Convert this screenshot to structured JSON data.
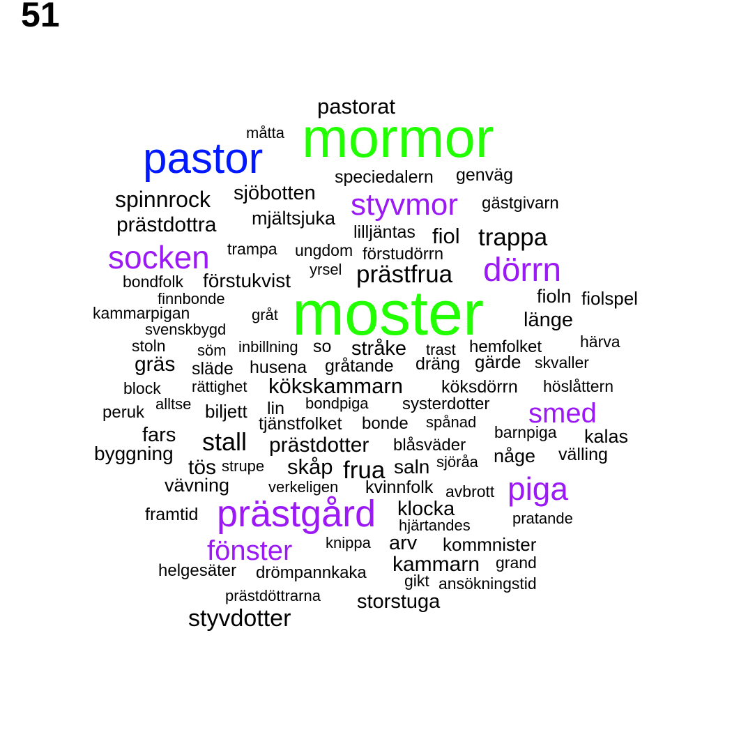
{
  "panel_number": "51",
  "colors": {
    "green": "#22ff00",
    "blue": "#0018ff",
    "purple": "#9b19f5",
    "black": "#000000"
  },
  "words": [
    {
      "text": "mormor",
      "size": 80,
      "color": "green"
    },
    {
      "text": "moster",
      "size": 90,
      "color": "green"
    },
    {
      "text": "pastor",
      "size": 62,
      "color": "blue"
    },
    {
      "text": "prästgård",
      "size": 54,
      "color": "purple"
    },
    {
      "text": "styvmor",
      "size": 44,
      "color": "purple"
    },
    {
      "text": "dörrn",
      "size": 48,
      "color": "purple"
    },
    {
      "text": "socken",
      "size": 46,
      "color": "purple"
    },
    {
      "text": "piga",
      "size": 46,
      "color": "purple"
    },
    {
      "text": "smed",
      "size": 40,
      "color": "purple"
    },
    {
      "text": "fönster",
      "size": 40,
      "color": "purple"
    },
    {
      "text": "pastorat",
      "size": 31,
      "color": "black"
    },
    {
      "text": "måtta",
      "size": 22,
      "color": "black"
    },
    {
      "text": "speciedalern",
      "size": 25,
      "color": "black"
    },
    {
      "text": "genväg",
      "size": 25,
      "color": "black"
    },
    {
      "text": "spinnrock",
      "size": 32,
      "color": "black"
    },
    {
      "text": "sjöbotten",
      "size": 29,
      "color": "black"
    },
    {
      "text": "gästgivarn",
      "size": 24,
      "color": "black"
    },
    {
      "text": "prästdottra",
      "size": 30,
      "color": "black"
    },
    {
      "text": "mjältsjuka",
      "size": 27,
      "color": "black"
    },
    {
      "text": "lilljäntas",
      "size": 25,
      "color": "black"
    },
    {
      "text": "fiol",
      "size": 31,
      "color": "black"
    },
    {
      "text": "trappa",
      "size": 35,
      "color": "black"
    },
    {
      "text": "trampa",
      "size": 23,
      "color": "black"
    },
    {
      "text": "ungdom",
      "size": 23,
      "color": "black"
    },
    {
      "text": "förstudörrn",
      "size": 24,
      "color": "black"
    },
    {
      "text": "yrsel",
      "size": 22,
      "color": "black"
    },
    {
      "text": "prästfrua",
      "size": 35,
      "color": "black"
    },
    {
      "text": "bondfolk",
      "size": 23,
      "color": "black"
    },
    {
      "text": "förstukvist",
      "size": 28,
      "color": "black"
    },
    {
      "text": "finnbonde",
      "size": 22,
      "color": "black"
    },
    {
      "text": "fioln",
      "size": 27,
      "color": "black"
    },
    {
      "text": "fiolspel",
      "size": 26,
      "color": "black"
    },
    {
      "text": "kammarpigan",
      "size": 23,
      "color": "black"
    },
    {
      "text": "gråt",
      "size": 22,
      "color": "black"
    },
    {
      "text": "länge",
      "size": 29,
      "color": "black"
    },
    {
      "text": "svenskbygd",
      "size": 22,
      "color": "black"
    },
    {
      "text": "stoln",
      "size": 23,
      "color": "black"
    },
    {
      "text": "söm",
      "size": 22,
      "color": "black"
    },
    {
      "text": "inbillning",
      "size": 22,
      "color": "black"
    },
    {
      "text": "so",
      "size": 25,
      "color": "black"
    },
    {
      "text": "stråke",
      "size": 29,
      "color": "black"
    },
    {
      "text": "trast",
      "size": 22,
      "color": "black"
    },
    {
      "text": "hemfolket",
      "size": 24,
      "color": "black"
    },
    {
      "text": "härva",
      "size": 23,
      "color": "black"
    },
    {
      "text": "gräs",
      "size": 30,
      "color": "black"
    },
    {
      "text": "släde",
      "size": 25,
      "color": "black"
    },
    {
      "text": "husena",
      "size": 25,
      "color": "black"
    },
    {
      "text": "gråtande",
      "size": 25,
      "color": "black"
    },
    {
      "text": "dräng",
      "size": 25,
      "color": "black"
    },
    {
      "text": "gärde",
      "size": 26,
      "color": "black"
    },
    {
      "text": "skvaller",
      "size": 23,
      "color": "black"
    },
    {
      "text": "block",
      "size": 23,
      "color": "black"
    },
    {
      "text": "rättighet",
      "size": 22,
      "color": "black"
    },
    {
      "text": "kökskammarn",
      "size": 31,
      "color": "black"
    },
    {
      "text": "köksdörrn",
      "size": 25,
      "color": "black"
    },
    {
      "text": "höslåttern",
      "size": 23,
      "color": "black"
    },
    {
      "text": "peruk",
      "size": 24,
      "color": "black"
    },
    {
      "text": "alltse",
      "size": 22,
      "color": "black"
    },
    {
      "text": "biljett",
      "size": 26,
      "color": "black"
    },
    {
      "text": "lin",
      "size": 25,
      "color": "black"
    },
    {
      "text": "bondpiga",
      "size": 22,
      "color": "black"
    },
    {
      "text": "systerdotter",
      "size": 24,
      "color": "black"
    },
    {
      "text": "tjänstfolket",
      "size": 25,
      "color": "black"
    },
    {
      "text": "bonde",
      "size": 24,
      "color": "black"
    },
    {
      "text": "spånad",
      "size": 22,
      "color": "black"
    },
    {
      "text": "fars",
      "size": 29,
      "color": "black"
    },
    {
      "text": "stall",
      "size": 36,
      "color": "black"
    },
    {
      "text": "prästdotter",
      "size": 30,
      "color": "black"
    },
    {
      "text": "blåsväder",
      "size": 24,
      "color": "black"
    },
    {
      "text": "barnpiga",
      "size": 23,
      "color": "black"
    },
    {
      "text": "kalas",
      "size": 27,
      "color": "black"
    },
    {
      "text": "byggning",
      "size": 28,
      "color": "black"
    },
    {
      "text": "tös",
      "size": 30,
      "color": "black"
    },
    {
      "text": "strupe",
      "size": 22,
      "color": "black"
    },
    {
      "text": "skåp",
      "size": 31,
      "color": "black"
    },
    {
      "text": "frua",
      "size": 35,
      "color": "black"
    },
    {
      "text": "saln",
      "size": 28,
      "color": "black"
    },
    {
      "text": "sjöråa",
      "size": 22,
      "color": "black"
    },
    {
      "text": "någe",
      "size": 27,
      "color": "black"
    },
    {
      "text": "välling",
      "size": 25,
      "color": "black"
    },
    {
      "text": "vävning",
      "size": 27,
      "color": "black"
    },
    {
      "text": "verkeligen",
      "size": 22,
      "color": "black"
    },
    {
      "text": "kvinnfolk",
      "size": 25,
      "color": "black"
    },
    {
      "text": "avbrott",
      "size": 23,
      "color": "black"
    },
    {
      "text": "framtid",
      "size": 25,
      "color": "black"
    },
    {
      "text": "klocka",
      "size": 29,
      "color": "black"
    },
    {
      "text": "pratande",
      "size": 22,
      "color": "black"
    },
    {
      "text": "hjärtandes",
      "size": 22,
      "color": "black"
    },
    {
      "text": "knippa",
      "size": 22,
      "color": "black"
    },
    {
      "text": "arv",
      "size": 29,
      "color": "black"
    },
    {
      "text": "kommnister",
      "size": 26,
      "color": "black"
    },
    {
      "text": "kammarn",
      "size": 30,
      "color": "black"
    },
    {
      "text": "grand",
      "size": 23,
      "color": "black"
    },
    {
      "text": "helgesäter",
      "size": 24,
      "color": "black"
    },
    {
      "text": "drömpannkaka",
      "size": 24,
      "color": "black"
    },
    {
      "text": "gikt",
      "size": 23,
      "color": "black"
    },
    {
      "text": "ansökningstid",
      "size": 23,
      "color": "black"
    },
    {
      "text": "prästdöttrarna",
      "size": 22,
      "color": "black"
    },
    {
      "text": "storstuga",
      "size": 29,
      "color": "black"
    },
    {
      "text": "styvdotter",
      "size": 34,
      "color": "black"
    }
  ]
}
